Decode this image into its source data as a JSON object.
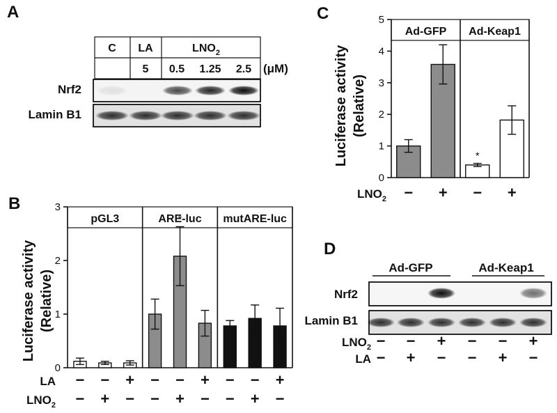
{
  "panels": {
    "a": "A",
    "b": "B",
    "c": "C",
    "d": "D"
  },
  "panel_a": {
    "header_groups": [
      "C",
      "LA",
      "LNO"
    ],
    "header_sub": "2",
    "concentrations": [
      "",
      "5",
      "0.5",
      "1.25",
      "2.5"
    ],
    "unit": "(μM)",
    "rows": [
      "Nrf2",
      "Lamin B1"
    ],
    "nrf2_intensity": [
      0.08,
      0.0,
      0.7,
      0.85,
      0.95
    ],
    "lamin_intensity": [
      0.8,
      0.8,
      0.8,
      0.8,
      0.8
    ]
  },
  "panel_d": {
    "groups": [
      "Ad-GFP",
      "Ad-Keap1"
    ],
    "rows": [
      "Nrf2",
      "Lamin B1"
    ],
    "nrf2_intensity": [
      0.0,
      0.0,
      0.95,
      0.0,
      0.0,
      0.55
    ],
    "lamin_intensity": [
      0.8,
      0.8,
      0.8,
      0.8,
      0.8,
      0.8
    ],
    "treatments": [
      {
        "label": "LNO",
        "sub": "2",
        "signs": [
          "−",
          "−",
          "+",
          "−",
          "−",
          "+"
        ]
      },
      {
        "label": "LA",
        "sub": "",
        "signs": [
          "−",
          "+",
          "−",
          "−",
          "+",
          "−"
        ]
      }
    ]
  },
  "chart_data": [
    {
      "id": "B",
      "type": "bar",
      "ylabel_line1": "Luciferase activity",
      "ylabel_line2": "(Relative)",
      "ylim": [
        0,
        3
      ],
      "yticks": [
        "0",
        "1",
        "2",
        "3"
      ],
      "groups": [
        "pGL3",
        "ARE-luc",
        "mutARE-luc"
      ],
      "group_colors": [
        "#ffffff",
        "#8c8c8c",
        "#111111"
      ],
      "values": [
        [
          0.12,
          0.09,
          0.09
        ],
        [
          1.0,
          2.08,
          0.83
        ],
        [
          0.78,
          0.92,
          0.78
        ]
      ],
      "errors": [
        [
          0.06,
          0.03,
          0.04
        ],
        [
          0.28,
          0.55,
          0.24
        ],
        [
          0.1,
          0.25,
          0.33
        ]
      ],
      "significance": [
        [
          "",
          "",
          ""
        ],
        [
          "",
          "*",
          ""
        ],
        [
          "",
          "",
          ""
        ]
      ],
      "treatments": [
        {
          "label": "LA",
          "sub": "",
          "signs": [
            "−",
            "−",
            "+",
            "−",
            "−",
            "+",
            "−",
            "−",
            "+"
          ]
        },
        {
          "label": "LNO",
          "sub": "2",
          "signs": [
            "−",
            "+",
            "−",
            "−",
            "+",
            "−",
            "−",
            "+",
            "−"
          ]
        }
      ]
    },
    {
      "id": "C",
      "type": "bar",
      "ylabel_line1": "Luciferase activity",
      "ylabel_line2": "(Relative)",
      "ylim": [
        0,
        5
      ],
      "yticks": [
        "0",
        "1",
        "2",
        "3",
        "4",
        "5"
      ],
      "groups": [
        "Ad-GFP",
        "Ad-Keap1"
      ],
      "group_colors": [
        "#8c8c8c",
        "#ffffff"
      ],
      "values": [
        [
          1.0,
          3.58
        ],
        [
          0.4,
          1.82
        ]
      ],
      "errors": [
        [
          0.2,
          0.62
        ],
        [
          0.05,
          0.45
        ]
      ],
      "significance": [
        [
          "",
          ""
        ],
        [
          "*",
          ""
        ]
      ],
      "treatments": [
        {
          "label": "LNO",
          "sub": "2",
          "signs": [
            "−",
            "+",
            "−",
            "+"
          ]
        }
      ]
    }
  ]
}
